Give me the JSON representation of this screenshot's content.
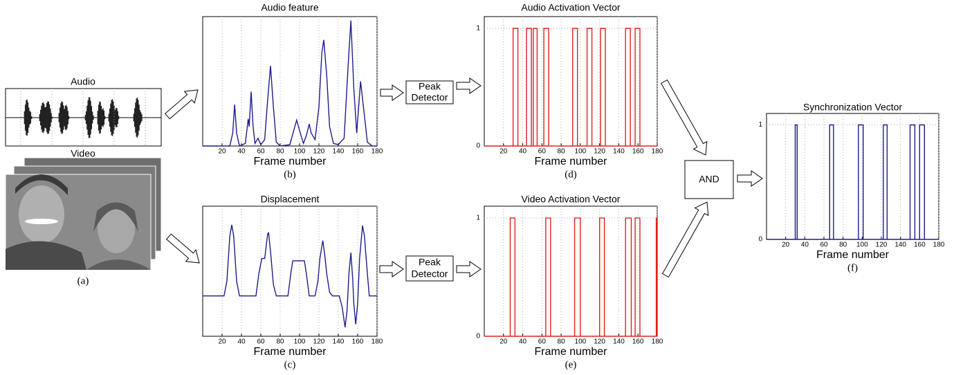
{
  "diagram": {
    "audio_label": "Audio",
    "video_label": "Video",
    "panel_a": "(a)",
    "peak_detector_audio": [
      "Peak",
      "Detector"
    ],
    "peak_detector_video": [
      "Peak",
      "Detector"
    ],
    "and_block": "AND"
  },
  "chart_data": [
    {
      "type": "line",
      "title": "Audio feature",
      "xlabel": "Frame number",
      "panel_label": "(b)",
      "color": "#1c1c8c",
      "xlim": [
        0,
        180
      ],
      "xticks": [
        20,
        40,
        60,
        80,
        100,
        120,
        140,
        160,
        180
      ],
      "ylim": [
        0,
        1
      ],
      "grid": true,
      "x": [
        0,
        28,
        31,
        33,
        35,
        38,
        44,
        47,
        48,
        50,
        52,
        54,
        57,
        60,
        64,
        67,
        70,
        73,
        76,
        80,
        90,
        94,
        97,
        100,
        104,
        107,
        110,
        112,
        116,
        120,
        123,
        125,
        128,
        131,
        135,
        140,
        146,
        150,
        153,
        156,
        159,
        161,
        163,
        166,
        170,
        175,
        180
      ],
      "values": [
        0,
        0,
        0.1,
        0.32,
        0.1,
        0,
        0.02,
        0.21,
        0.15,
        0.42,
        0.15,
        0.02,
        0.06,
        0.01,
        0.05,
        0.35,
        0.62,
        0.3,
        0.03,
        0,
        0.01,
        0.12,
        0.2,
        0.12,
        0.02,
        0.08,
        0.17,
        0.1,
        0.05,
        0.3,
        0.72,
        0.82,
        0.55,
        0.15,
        0.02,
        0.01,
        0.06,
        0.6,
        0.97,
        0.45,
        0.1,
        0.3,
        0.5,
        0.3,
        0.03,
        0,
        0
      ]
    },
    {
      "type": "line",
      "title": "Displacement",
      "xlabel": "Frame number",
      "panel_label": "(c)",
      "color": "#1c1c8c",
      "xlim": [
        0,
        180
      ],
      "xticks": [
        20,
        40,
        60,
        80,
        100,
        120,
        140,
        160,
        180
      ],
      "ylim": [
        -0.54,
        1.2
      ],
      "grid": true,
      "x": [
        0,
        22,
        25,
        28,
        30,
        32,
        35,
        38,
        55,
        58,
        61,
        64,
        67,
        68,
        70,
        73,
        76,
        88,
        91,
        93,
        105,
        107,
        110,
        116,
        119,
        121,
        124,
        126,
        128,
        131,
        134,
        141,
        144,
        147,
        149,
        151,
        153,
        155,
        156,
        158,
        160,
        162,
        165,
        167,
        170,
        172,
        180
      ],
      "values": [
        0,
        0,
        0.2,
        0.8,
        0.95,
        0.8,
        0.2,
        0,
        0,
        0.3,
        0.5,
        0.5,
        0.82,
        0.85,
        0.6,
        0.15,
        0,
        0,
        0.3,
        0.47,
        0.47,
        0.3,
        0,
        0,
        0.2,
        0.5,
        0.74,
        0.55,
        0.3,
        0.05,
        0,
        0,
        -0.15,
        -0.42,
        -0.2,
        0.3,
        0.58,
        0.2,
        -0.1,
        -0.38,
        -0.1,
        0.5,
        0.94,
        0.8,
        0.3,
        0,
        0
      ]
    },
    {
      "type": "pulse",
      "title": "Audio Activation Vector",
      "xlabel": "Frame number",
      "panel_label": "(d)",
      "color": "#e0201c",
      "xlim": [
        0,
        180
      ],
      "xticks": [
        20,
        40,
        60,
        80,
        100,
        120,
        140,
        160,
        180
      ],
      "ylim": [
        0,
        1.1
      ],
      "yticks": [
        0,
        1
      ],
      "grid": true,
      "baseline": 0,
      "level": 1,
      "pulses": [
        [
          30,
          35
        ],
        [
          44,
          49
        ],
        [
          51,
          55
        ],
        [
          62,
          67
        ],
        [
          92,
          97
        ],
        [
          107,
          112
        ],
        [
          121,
          126
        ],
        [
          147,
          152
        ],
        [
          157,
          162
        ]
      ]
    },
    {
      "type": "pulse",
      "title": "Video Activation Vector",
      "xlabel": "Frame number",
      "panel_label": "(e)",
      "color": "#e0201c",
      "xlim": [
        0,
        180
      ],
      "xticks": [
        20,
        40,
        60,
        80,
        100,
        120,
        140,
        160,
        180
      ],
      "ylim": [
        0,
        1.1
      ],
      "yticks": [
        0,
        1
      ],
      "grid": true,
      "baseline": 0,
      "level": 1,
      "pulses": [
        [
          27,
          32
        ],
        [
          64,
          69
        ],
        [
          94,
          100
        ],
        [
          120,
          125
        ],
        [
          147,
          153
        ],
        [
          157,
          162
        ],
        [
          179,
          180
        ]
      ]
    },
    {
      "type": "pulse",
      "title": "Synchronization Vector",
      "xlabel": "Frame number",
      "panel_label": "(f)",
      "color": "#1c1c8c",
      "xlim": [
        0,
        180
      ],
      "xticks": [
        20,
        40,
        60,
        80,
        100,
        120,
        140,
        160,
        180
      ],
      "ylim": [
        0,
        1.1
      ],
      "yticks": [
        0,
        1
      ],
      "grid": true,
      "baseline": 0,
      "level": 1,
      "pulses": [
        [
          30,
          32
        ],
        [
          66,
          70
        ],
        [
          96,
          101
        ],
        [
          122,
          126
        ],
        [
          150,
          155
        ],
        [
          160,
          165
        ]
      ]
    }
  ]
}
